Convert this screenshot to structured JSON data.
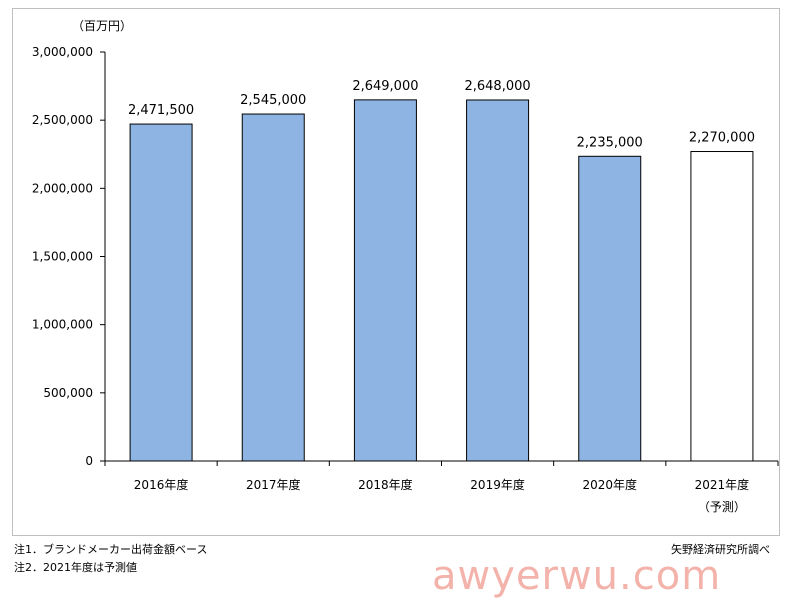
{
  "chart_data": {
    "type": "bar",
    "unit_label": "（百万円）",
    "categories": [
      "2016年度",
      "2017年度",
      "2018年度",
      "2019年度",
      "2020年度",
      "2021年度"
    ],
    "category_sublabels": [
      "",
      "",
      "",
      "",
      "",
      "（予測）"
    ],
    "values": [
      2471500,
      2545000,
      2649000,
      2648000,
      2235000,
      2270000
    ],
    "value_labels": [
      "2,471,500",
      "2,545,000",
      "2,649,000",
      "2,648,000",
      "2,235,000",
      "2,270,000"
    ],
    "forecast": [
      false,
      false,
      false,
      false,
      false,
      true
    ],
    "ylim": [
      0,
      3000000
    ],
    "yticks": [
      0,
      500000,
      1000000,
      1500000,
      2000000,
      2500000,
      3000000
    ],
    "ytick_labels": [
      "0",
      "500,000",
      "1,000,000",
      "1,500,000",
      "2,000,000",
      "2,500,000",
      "3,000,000"
    ],
    "grid": false,
    "colors": {
      "actual": "#8eb4e3",
      "forecast": "#ffffff",
      "outline": "#000000"
    }
  },
  "notes": [
    "注1．ブランドメーカー出荷金額ベース",
    "注2．2021年度は予測値"
  ],
  "source": "矢野経済研究所調べ",
  "watermark": "awyerwu.com"
}
